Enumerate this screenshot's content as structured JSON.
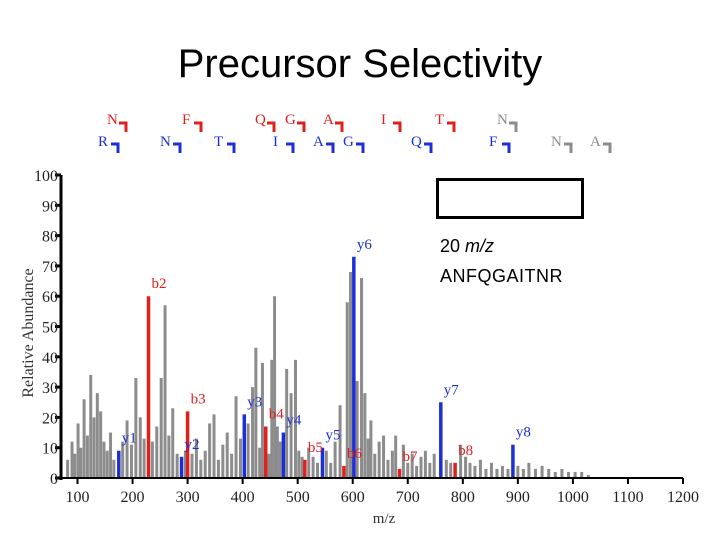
{
  "slide": {
    "title": "Precursor Selectivity",
    "window_value": "20",
    "window_unit": "m/z",
    "peptide": "ANFQGAITNR"
  },
  "colors": {
    "b_ion": "#e0201c",
    "y_ion": "#1c2fd6",
    "noise": "#8c8c8c",
    "axis": "#000000"
  },
  "chart_data": {
    "type": "bar",
    "xlabel": "m/z",
    "ylabel": "Relative Abundance",
    "xlim": [
      70,
      1200
    ],
    "ylim": [
      0,
      100
    ],
    "xticks": [
      100,
      200,
      300,
      400,
      500,
      600,
      700,
      800,
      900,
      1000,
      1100,
      1200
    ],
    "yticks": [
      0,
      10,
      20,
      30,
      40,
      50,
      60,
      70,
      80,
      90,
      100
    ],
    "grid": false,
    "sequence_top": [
      "N",
      "F",
      "Q",
      "G",
      "A",
      "I",
      "T",
      "N"
    ],
    "sequence_bottom": [
      "R",
      "N",
      "T",
      "I",
      "A",
      "G",
      "Q",
      "F",
      "N",
      "A"
    ],
    "b_ions": [
      {
        "label": "b2",
        "mz": 229,
        "value": 60
      },
      {
        "label": "b3",
        "mz": 300,
        "value": 22
      },
      {
        "label": "b4",
        "mz": 442,
        "value": 17
      },
      {
        "label": "b5",
        "mz": 513,
        "value": 6
      },
      {
        "label": "b6",
        "mz": 584,
        "value": 4
      },
      {
        "label": "b7",
        "mz": 685,
        "value": 3
      },
      {
        "label": "b8",
        "mz": 786,
        "value": 5
      }
    ],
    "y_ions": [
      {
        "label": "y1",
        "mz": 175,
        "value": 9
      },
      {
        "label": "y2",
        "mz": 289,
        "value": 7
      },
      {
        "label": "y3",
        "mz": 403,
        "value": 21
      },
      {
        "label": "y4",
        "mz": 474,
        "value": 15
      },
      {
        "label": "y5",
        "mz": 545,
        "value": 10
      },
      {
        "label": "y6",
        "mz": 602,
        "value": 73
      },
      {
        "label": "y7",
        "mz": 760,
        "value": 25
      },
      {
        "label": "y8",
        "mz": 891,
        "value": 11
      }
    ],
    "other_peaks": [
      {
        "mz": 82,
        "value": 6
      },
      {
        "mz": 90,
        "value": 12
      },
      {
        "mz": 95,
        "value": 8
      },
      {
        "mz": 101,
        "value": 18
      },
      {
        "mz": 106,
        "value": 10
      },
      {
        "mz": 112,
        "value": 26
      },
      {
        "mz": 118,
        "value": 14
      },
      {
        "mz": 124,
        "value": 34
      },
      {
        "mz": 130,
        "value": 20
      },
      {
        "mz": 136,
        "value": 28
      },
      {
        "mz": 142,
        "value": 22
      },
      {
        "mz": 148,
        "value": 12
      },
      {
        "mz": 154,
        "value": 9
      },
      {
        "mz": 160,
        "value": 15
      },
      {
        "mz": 166,
        "value": 6
      },
      {
        "mz": 182,
        "value": 12
      },
      {
        "mz": 190,
        "value": 19
      },
      {
        "mz": 198,
        "value": 11
      },
      {
        "mz": 206,
        "value": 33
      },
      {
        "mz": 214,
        "value": 20
      },
      {
        "mz": 221,
        "value": 13
      },
      {
        "mz": 236,
        "value": 12
      },
      {
        "mz": 244,
        "value": 17
      },
      {
        "mz": 252,
        "value": 33
      },
      {
        "mz": 259,
        "value": 57
      },
      {
        "mz": 266,
        "value": 14
      },
      {
        "mz": 273,
        "value": 23
      },
      {
        "mz": 281,
        "value": 8
      },
      {
        "mz": 296,
        "value": 9
      },
      {
        "mz": 308,
        "value": 8
      },
      {
        "mz": 316,
        "value": 13
      },
      {
        "mz": 324,
        "value": 6
      },
      {
        "mz": 332,
        "value": 9
      },
      {
        "mz": 340,
        "value": 18
      },
      {
        "mz": 348,
        "value": 21
      },
      {
        "mz": 356,
        "value": 6
      },
      {
        "mz": 364,
        "value": 11
      },
      {
        "mz": 372,
        "value": 15
      },
      {
        "mz": 380,
        "value": 8
      },
      {
        "mz": 388,
        "value": 27
      },
      {
        "mz": 396,
        "value": 13
      },
      {
        "mz": 410,
        "value": 18
      },
      {
        "mz": 418,
        "value": 30
      },
      {
        "mz": 424,
        "value": 43
      },
      {
        "mz": 431,
        "value": 10
      },
      {
        "mz": 436,
        "value": 38
      },
      {
        "mz": 448,
        "value": 8
      },
      {
        "mz": 453,
        "value": 39
      },
      {
        "mz": 458,
        "value": 60
      },
      {
        "mz": 463,
        "value": 17
      },
      {
        "mz": 468,
        "value": 12
      },
      {
        "mz": 480,
        "value": 36
      },
      {
        "mz": 488,
        "value": 28
      },
      {
        "mz": 496,
        "value": 39
      },
      {
        "mz": 502,
        "value": 9
      },
      {
        "mz": 508,
        "value": 7
      },
      {
        "mz": 520,
        "value": 10
      },
      {
        "mz": 528,
        "value": 7
      },
      {
        "mz": 536,
        "value": 5
      },
      {
        "mz": 552,
        "value": 9
      },
      {
        "mz": 560,
        "value": 5
      },
      {
        "mz": 568,
        "value": 12
      },
      {
        "mz": 577,
        "value": 24
      },
      {
        "mz": 590,
        "value": 58
      },
      {
        "mz": 596,
        "value": 68
      },
      {
        "mz": 608,
        "value": 32
      },
      {
        "mz": 616,
        "value": 66
      },
      {
        "mz": 622,
        "value": 28
      },
      {
        "mz": 628,
        "value": 13
      },
      {
        "mz": 633,
        "value": 19
      },
      {
        "mz": 640,
        "value": 8
      },
      {
        "mz": 648,
        "value": 12
      },
      {
        "mz": 656,
        "value": 14
      },
      {
        "mz": 664,
        "value": 6
      },
      {
        "mz": 672,
        "value": 9
      },
      {
        "mz": 678,
        "value": 14
      },
      {
        "mz": 692,
        "value": 11
      },
      {
        "mz": 700,
        "value": 5
      },
      {
        "mz": 708,
        "value": 8
      },
      {
        "mz": 716,
        "value": 4
      },
      {
        "mz": 724,
        "value": 7
      },
      {
        "mz": 732,
        "value": 9
      },
      {
        "mz": 740,
        "value": 5
      },
      {
        "mz": 748,
        "value": 8
      },
      {
        "mz": 770,
        "value": 6
      },
      {
        "mz": 778,
        "value": 5
      },
      {
        "mz": 796,
        "value": 11
      },
      {
        "mz": 805,
        "value": 7
      },
      {
        "mz": 813,
        "value": 5
      },
      {
        "mz": 822,
        "value": 4
      },
      {
        "mz": 832,
        "value": 6
      },
      {
        "mz": 842,
        "value": 3
      },
      {
        "mz": 852,
        "value": 5
      },
      {
        "mz": 862,
        "value": 3
      },
      {
        "mz": 872,
        "value": 4
      },
      {
        "mz": 882,
        "value": 3
      },
      {
        "mz": 900,
        "value": 4
      },
      {
        "mz": 910,
        "value": 3
      },
      {
        "mz": 920,
        "value": 5
      },
      {
        "mz": 932,
        "value": 3
      },
      {
        "mz": 944,
        "value": 4
      },
      {
        "mz": 956,
        "value": 3
      },
      {
        "mz": 968,
        "value": 2
      },
      {
        "mz": 980,
        "value": 3
      },
      {
        "mz": 992,
        "value": 2
      },
      {
        "mz": 1004,
        "value": 2
      },
      {
        "mz": 1016,
        "value": 2
      },
      {
        "mz": 1028,
        "value": 1
      }
    ]
  }
}
